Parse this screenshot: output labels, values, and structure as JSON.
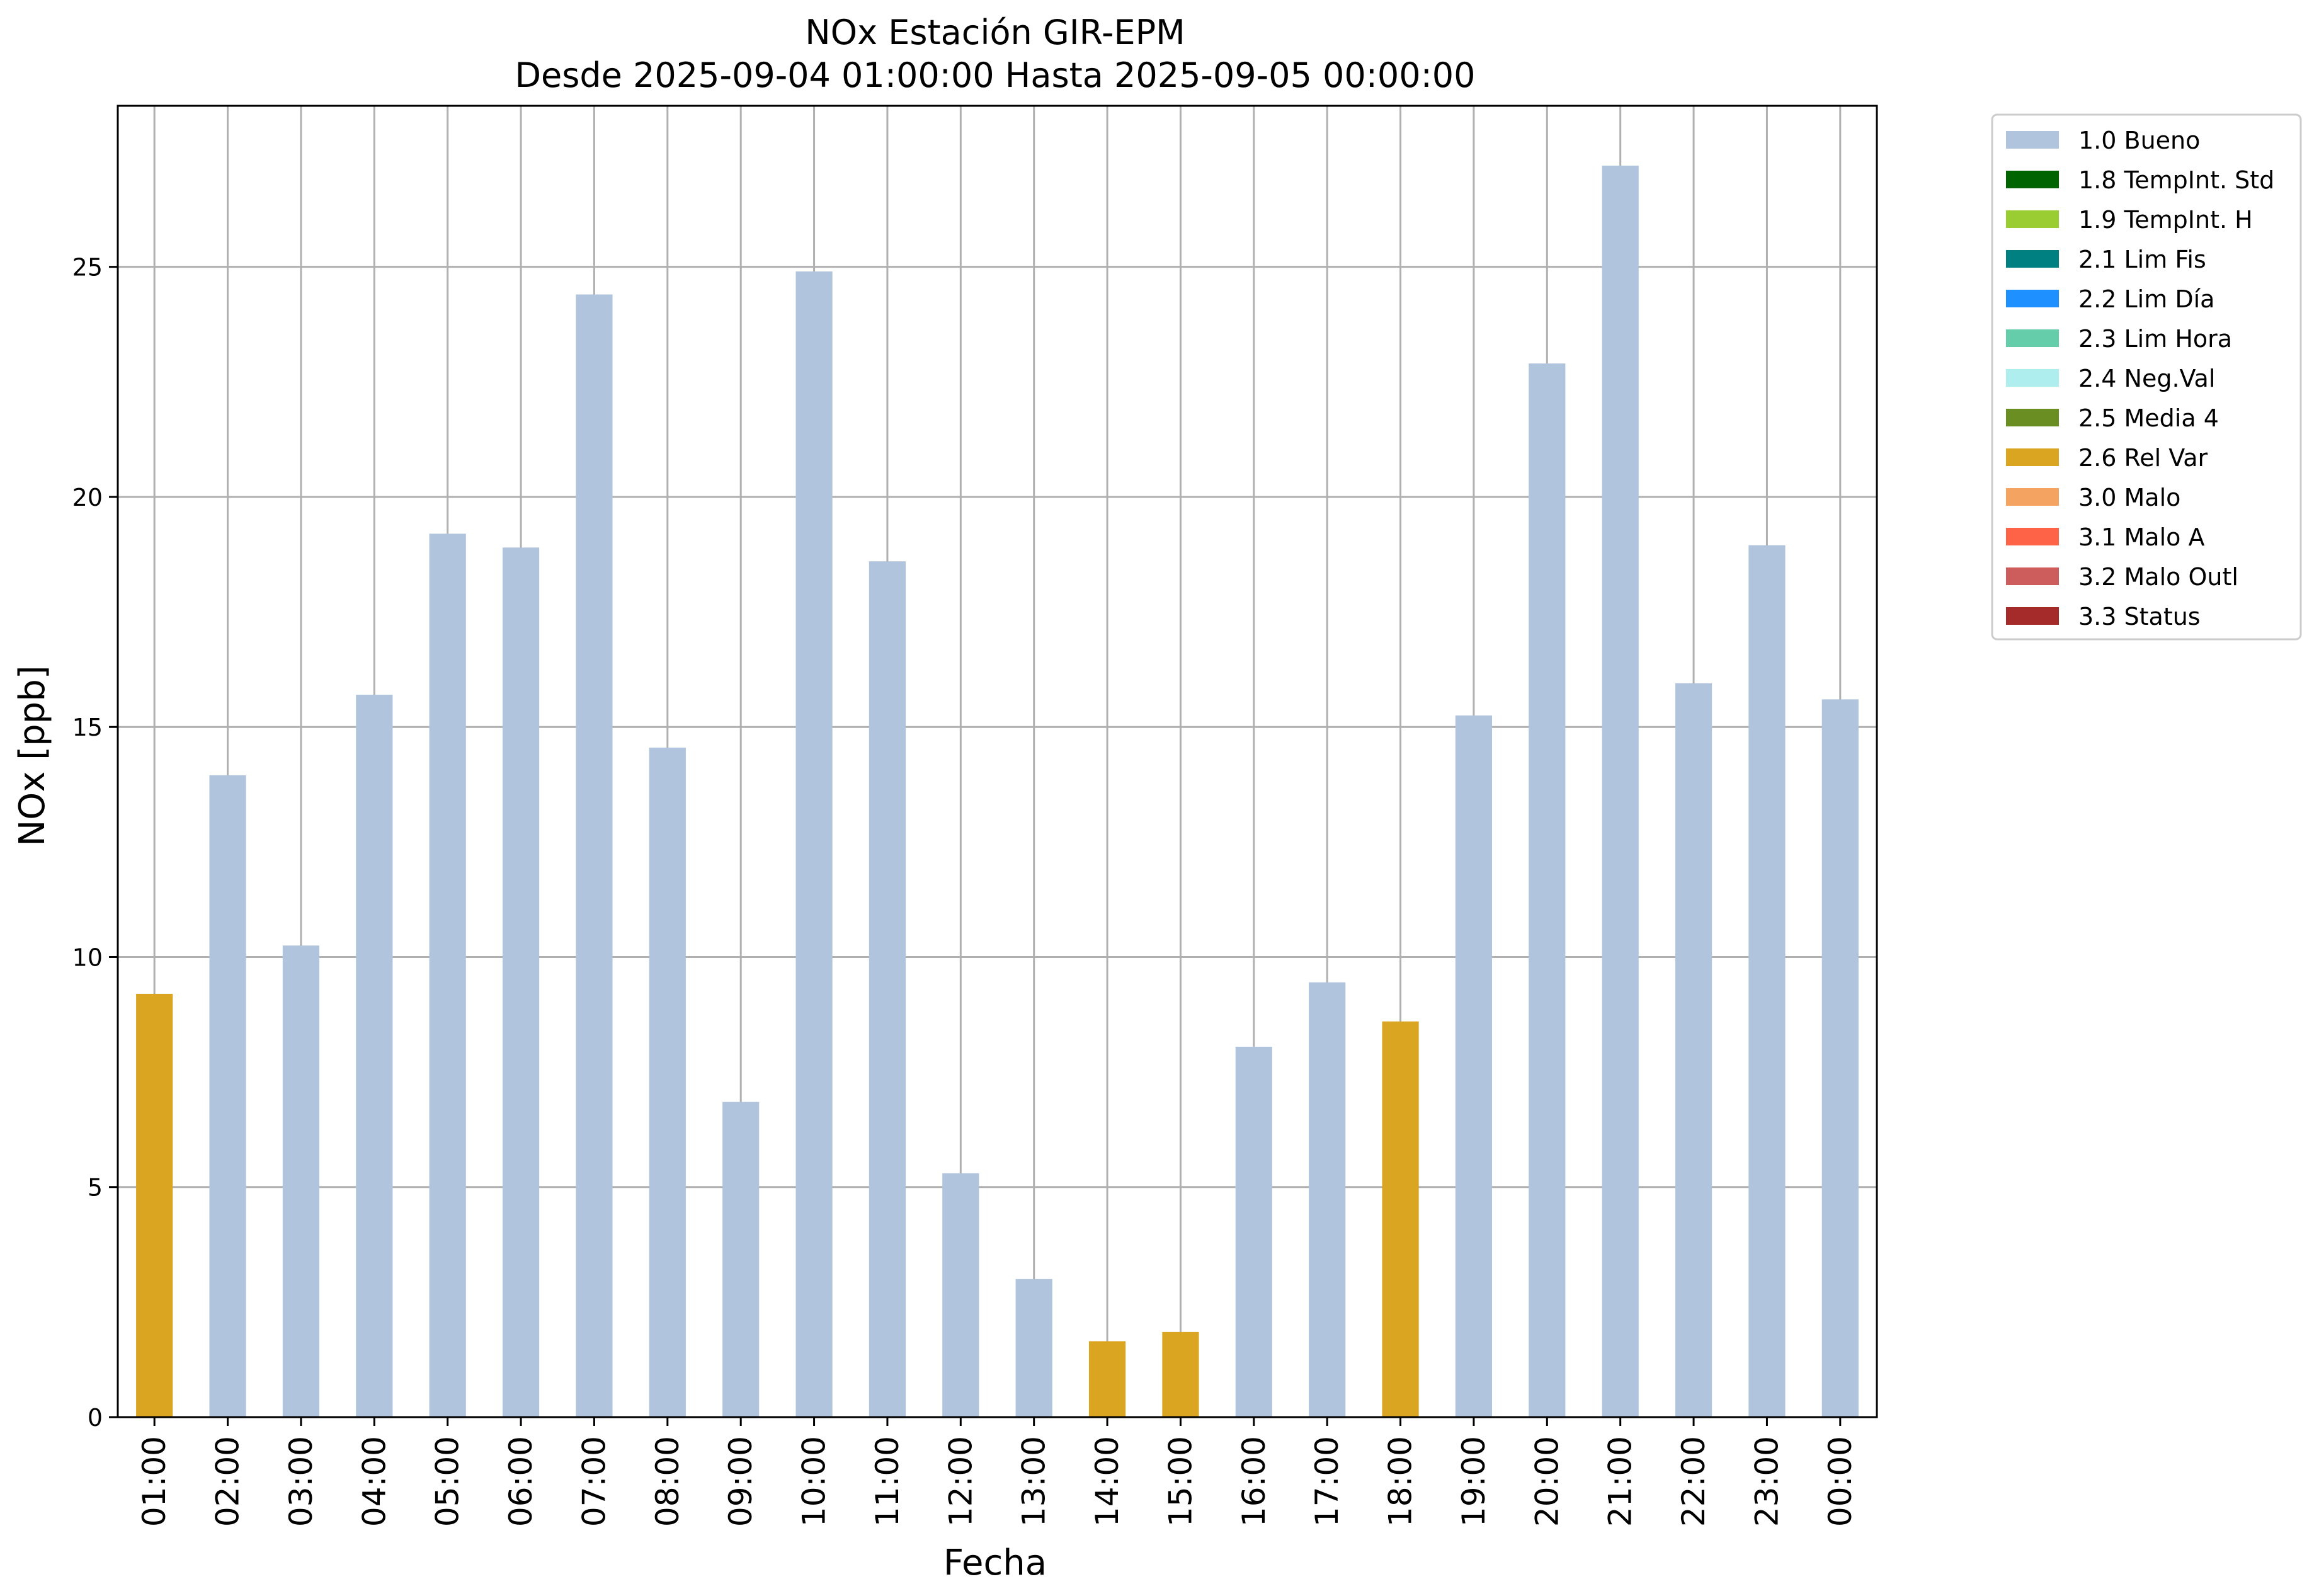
{
  "chart_data": {
    "type": "bar",
    "title": "NOx Estación GIR-EPM",
    "subtitle": "Desde 2025-09-04 01:00:00 Hasta 2025-09-05 00:00:00",
    "xlabel": "Fecha",
    "ylabel": "NOx [ppb]",
    "ylim": [
      0,
      28.5
    ],
    "yticks": [
      0,
      5,
      10,
      15,
      20,
      25
    ],
    "grid": true,
    "legend_position": "outside-right",
    "categories": [
      "01:00",
      "02:00",
      "03:00",
      "04:00",
      "05:00",
      "06:00",
      "07:00",
      "08:00",
      "09:00",
      "10:00",
      "11:00",
      "12:00",
      "13:00",
      "14:00",
      "15:00",
      "16:00",
      "17:00",
      "18:00",
      "19:00",
      "20:00",
      "21:00",
      "22:00",
      "23:00",
      "00:00"
    ],
    "values": [
      9.2,
      13.95,
      10.25,
      15.7,
      19.2,
      18.9,
      24.4,
      14.55,
      6.85,
      24.9,
      18.6,
      5.3,
      3.0,
      1.65,
      1.85,
      8.05,
      9.45,
      8.6,
      15.25,
      22.9,
      27.2,
      15.95,
      18.95,
      15.6
    ],
    "flags": [
      "2.6 Rel Var",
      "1.0 Bueno",
      "1.0 Bueno",
      "1.0 Bueno",
      "1.0 Bueno",
      "1.0 Bueno",
      "1.0 Bueno",
      "1.0 Bueno",
      "1.0 Bueno",
      "1.0 Bueno",
      "1.0 Bueno",
      "1.0 Bueno",
      "1.0 Bueno",
      "2.6 Rel Var",
      "2.6 Rel Var",
      "1.0 Bueno",
      "1.0 Bueno",
      "2.6 Rel Var",
      "1.0 Bueno",
      "1.0 Bueno",
      "1.0 Bueno",
      "1.0 Bueno",
      "1.0 Bueno",
      "1.0 Bueno"
    ],
    "legend": [
      {
        "label": "1.0 Bueno",
        "color": "#b0c4de"
      },
      {
        "label": "1.8 TempInt. Std",
        "color": "#006400"
      },
      {
        "label": "1.9 TempInt. H",
        "color": "#9acd32"
      },
      {
        "label": "2.1 Lim Fis",
        "color": "#008080"
      },
      {
        "label": "2.2 Lim Día",
        "color": "#1e90ff"
      },
      {
        "label": "2.3 Lim Hora",
        "color": "#66cdaa"
      },
      {
        "label": "2.4 Neg.Val",
        "color": "#afeeee"
      },
      {
        "label": "2.5 Media 4",
        "color": "#6b8e23"
      },
      {
        "label": "2.6 Rel Var",
        "color": "#daa520"
      },
      {
        "label": "3.0 Malo",
        "color": "#f4a460"
      },
      {
        "label": "3.1 Malo A",
        "color": "#ff6347"
      },
      {
        "label": "3.2 Malo Outl",
        "color": "#cd5c5c"
      },
      {
        "label": "3.3 Status",
        "color": "#a52a2a"
      }
    ]
  }
}
